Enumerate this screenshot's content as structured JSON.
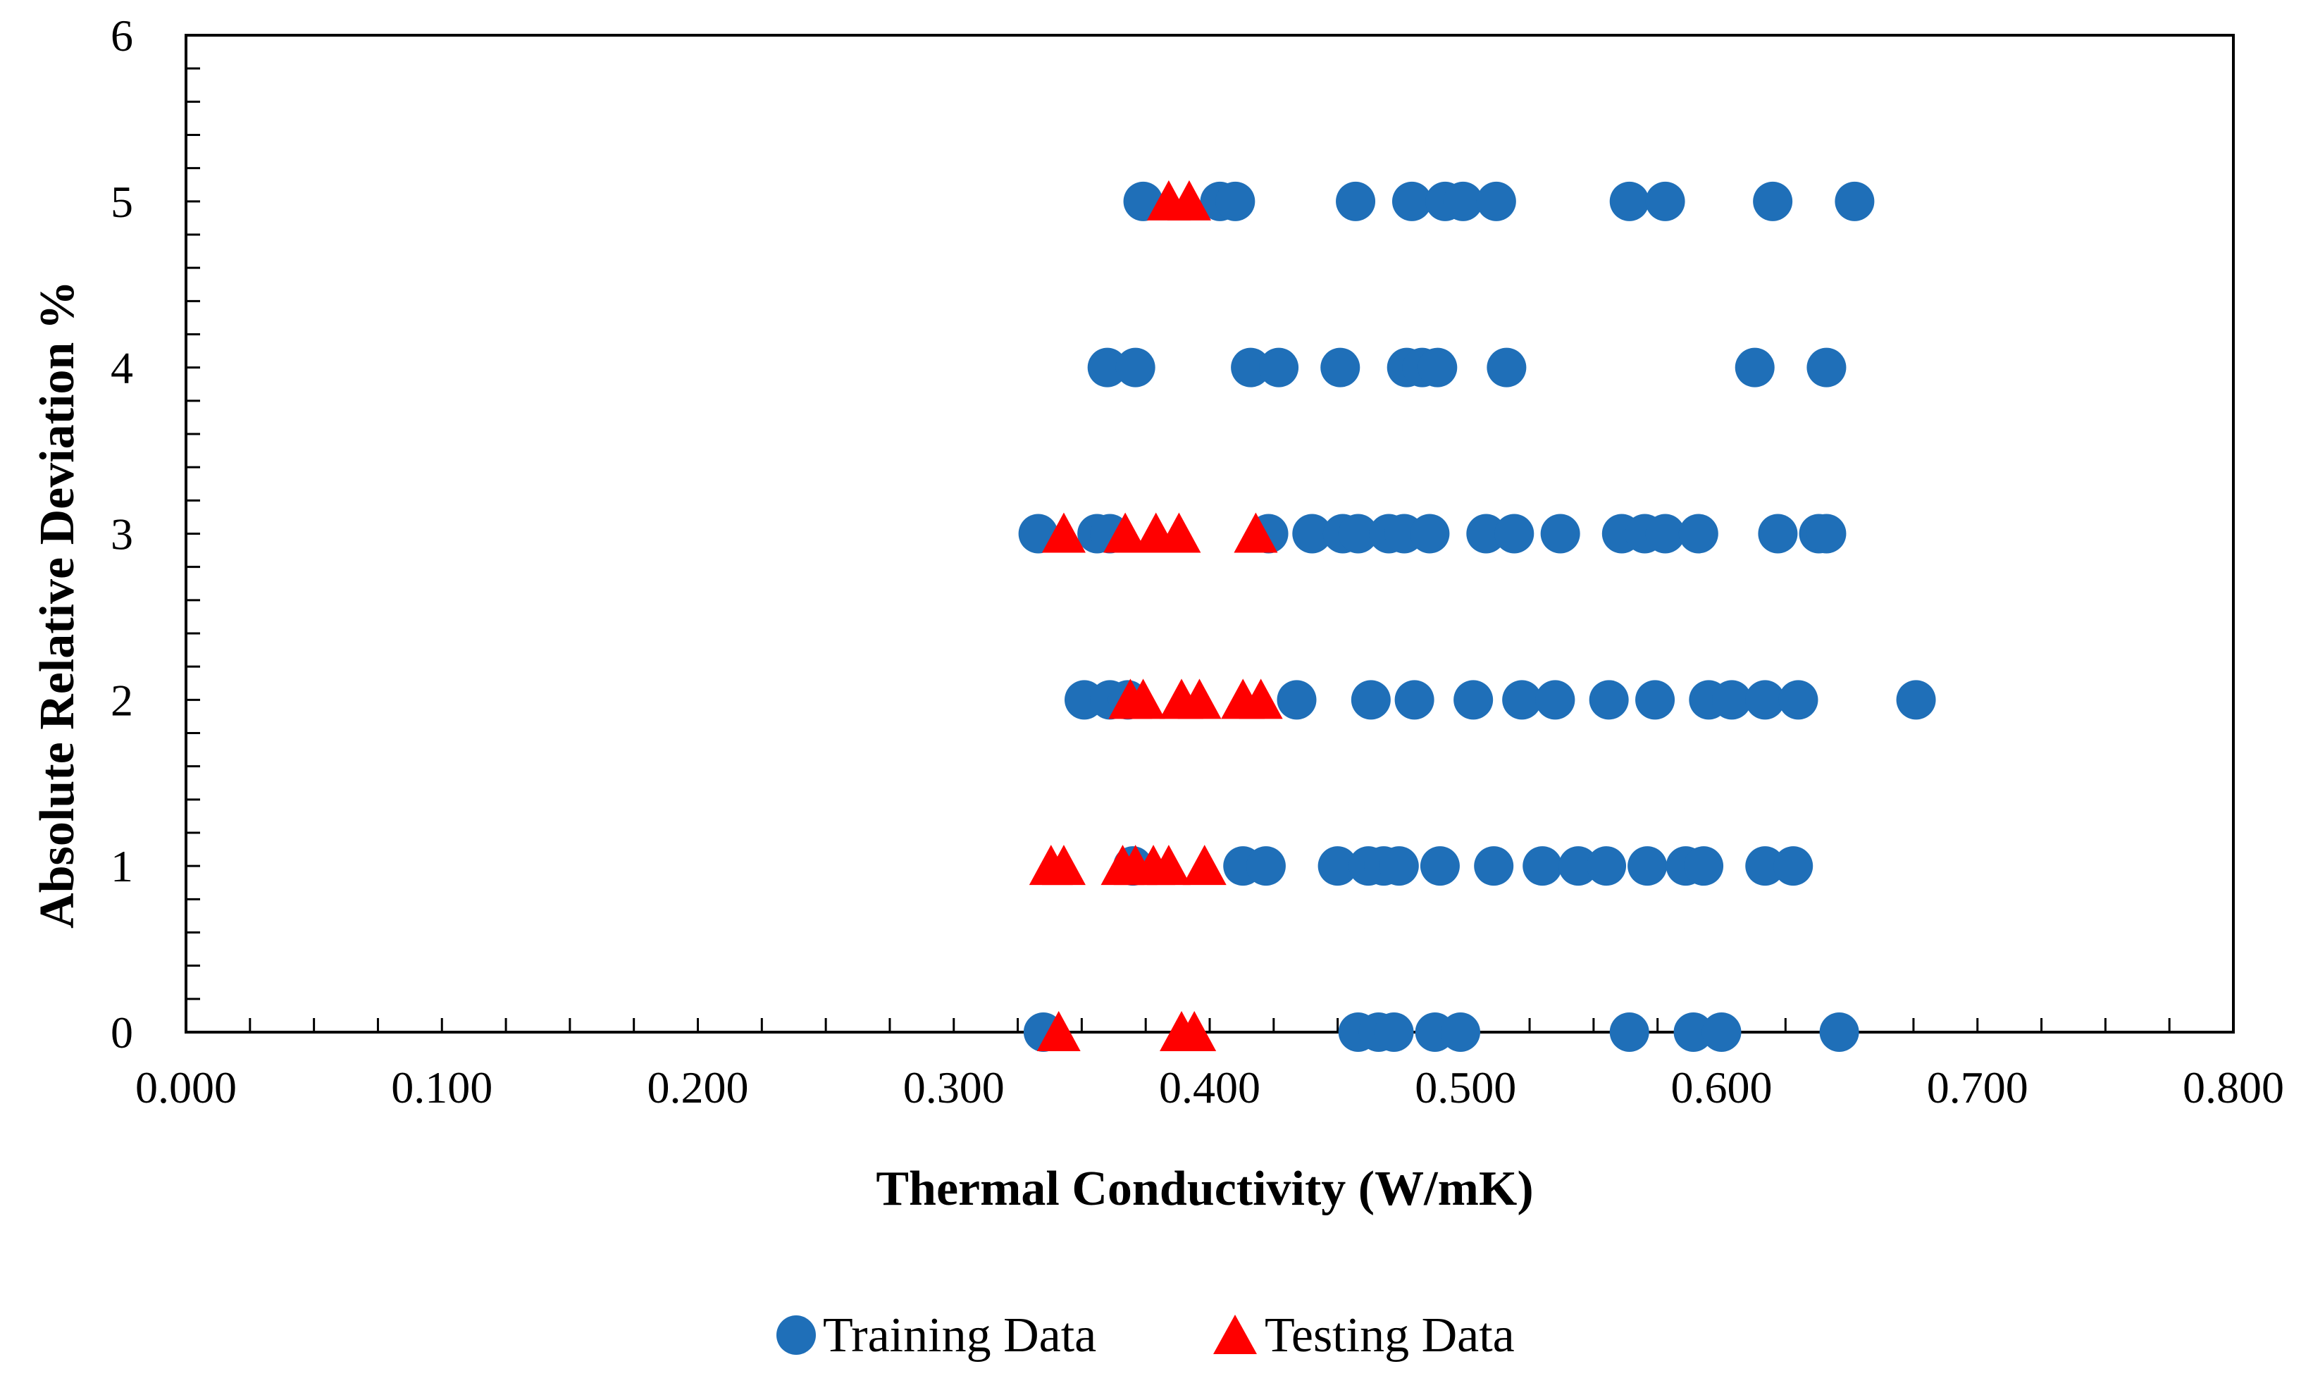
{
  "chart_data": {
    "type": "scatter",
    "title": "",
    "xlabel": "Thermal Conductivity (W/mK)",
    "ylabel": "Absolute Relative Deviation %",
    "xlim": [
      0,
      0.8
    ],
    "ylim": [
      0,
      6
    ],
    "x_tick_labels": [
      "0.000",
      "0.100",
      "0.200",
      "0.300",
      "0.400",
      "0.500",
      "0.600",
      "0.700",
      "0.800"
    ],
    "y_tick_labels": [
      "0",
      "1",
      "2",
      "3",
      "4",
      "5",
      "6"
    ],
    "grid": false,
    "legend_position": "bottom-center",
    "colors": {
      "training": "#1f6fb8",
      "testing": "#ff0000",
      "axis": "#000000"
    },
    "series": [
      {
        "name": "Training Data",
        "marker": "circle",
        "points": [
          {
            "x": 0.335,
            "y": 0
          },
          {
            "x": 0.458,
            "y": 0
          },
          {
            "x": 0.466,
            "y": 0
          },
          {
            "x": 0.472,
            "y": 0
          },
          {
            "x": 0.488,
            "y": 0
          },
          {
            "x": 0.498,
            "y": 0
          },
          {
            "x": 0.564,
            "y": 0
          },
          {
            "x": 0.589,
            "y": 0
          },
          {
            "x": 0.6,
            "y": 0
          },
          {
            "x": 0.646,
            "y": 0
          },
          {
            "x": 0.37,
            "y": 1
          },
          {
            "x": 0.413,
            "y": 1
          },
          {
            "x": 0.422,
            "y": 1
          },
          {
            "x": 0.45,
            "y": 1
          },
          {
            "x": 0.462,
            "y": 1
          },
          {
            "x": 0.468,
            "y": 1
          },
          {
            "x": 0.474,
            "y": 1
          },
          {
            "x": 0.49,
            "y": 1
          },
          {
            "x": 0.511,
            "y": 1
          },
          {
            "x": 0.53,
            "y": 1
          },
          {
            "x": 0.544,
            "y": 1
          },
          {
            "x": 0.555,
            "y": 1
          },
          {
            "x": 0.571,
            "y": 1
          },
          {
            "x": 0.586,
            "y": 1
          },
          {
            "x": 0.593,
            "y": 1
          },
          {
            "x": 0.617,
            "y": 1
          },
          {
            "x": 0.628,
            "y": 1
          },
          {
            "x": 0.351,
            "y": 2
          },
          {
            "x": 0.361,
            "y": 2
          },
          {
            "x": 0.368,
            "y": 2
          },
          {
            "x": 0.434,
            "y": 2
          },
          {
            "x": 0.463,
            "y": 2
          },
          {
            "x": 0.48,
            "y": 2
          },
          {
            "x": 0.503,
            "y": 2
          },
          {
            "x": 0.522,
            "y": 2
          },
          {
            "x": 0.535,
            "y": 2
          },
          {
            "x": 0.556,
            "y": 2
          },
          {
            "x": 0.574,
            "y": 2
          },
          {
            "x": 0.595,
            "y": 2
          },
          {
            "x": 0.604,
            "y": 2
          },
          {
            "x": 0.617,
            "y": 2
          },
          {
            "x": 0.63,
            "y": 2
          },
          {
            "x": 0.676,
            "y": 2
          },
          {
            "x": 0.333,
            "y": 3
          },
          {
            "x": 0.356,
            "y": 3
          },
          {
            "x": 0.361,
            "y": 3
          },
          {
            "x": 0.423,
            "y": 3
          },
          {
            "x": 0.44,
            "y": 3
          },
          {
            "x": 0.452,
            "y": 3
          },
          {
            "x": 0.458,
            "y": 3
          },
          {
            "x": 0.47,
            "y": 3
          },
          {
            "x": 0.476,
            "y": 3
          },
          {
            "x": 0.486,
            "y": 3
          },
          {
            "x": 0.508,
            "y": 3
          },
          {
            "x": 0.519,
            "y": 3
          },
          {
            "x": 0.537,
            "y": 3
          },
          {
            "x": 0.561,
            "y": 3
          },
          {
            "x": 0.57,
            "y": 3
          },
          {
            "x": 0.578,
            "y": 3
          },
          {
            "x": 0.591,
            "y": 3
          },
          {
            "x": 0.622,
            "y": 3
          },
          {
            "x": 0.638,
            "y": 3
          },
          {
            "x": 0.641,
            "y": 3
          },
          {
            "x": 0.36,
            "y": 4
          },
          {
            "x": 0.371,
            "y": 4
          },
          {
            "x": 0.416,
            "y": 4
          },
          {
            "x": 0.427,
            "y": 4
          },
          {
            "x": 0.451,
            "y": 4
          },
          {
            "x": 0.477,
            "y": 4
          },
          {
            "x": 0.483,
            "y": 4
          },
          {
            "x": 0.489,
            "y": 4
          },
          {
            "x": 0.516,
            "y": 4
          },
          {
            "x": 0.613,
            "y": 4
          },
          {
            "x": 0.641,
            "y": 4
          },
          {
            "x": 0.374,
            "y": 5
          },
          {
            "x": 0.404,
            "y": 5
          },
          {
            "x": 0.41,
            "y": 5
          },
          {
            "x": 0.457,
            "y": 5
          },
          {
            "x": 0.479,
            "y": 5
          },
          {
            "x": 0.492,
            "y": 5
          },
          {
            "x": 0.499,
            "y": 5
          },
          {
            "x": 0.512,
            "y": 5
          },
          {
            "x": 0.564,
            "y": 5
          },
          {
            "x": 0.578,
            "y": 5
          },
          {
            "x": 0.62,
            "y": 5
          },
          {
            "x": 0.652,
            "y": 5
          }
        ]
      },
      {
        "name": "Testing Data",
        "marker": "triangle",
        "points": [
          {
            "x": 0.341,
            "y": 0
          },
          {
            "x": 0.389,
            "y": 0
          },
          {
            "x": 0.394,
            "y": 0
          },
          {
            "x": 0.338,
            "y": 1
          },
          {
            "x": 0.343,
            "y": 1
          },
          {
            "x": 0.366,
            "y": 1
          },
          {
            "x": 0.371,
            "y": 1
          },
          {
            "x": 0.378,
            "y": 1
          },
          {
            "x": 0.384,
            "y": 1
          },
          {
            "x": 0.398,
            "y": 1
          },
          {
            "x": 0.369,
            "y": 2
          },
          {
            "x": 0.374,
            "y": 2
          },
          {
            "x": 0.389,
            "y": 2
          },
          {
            "x": 0.396,
            "y": 2
          },
          {
            "x": 0.413,
            "y": 2
          },
          {
            "x": 0.42,
            "y": 2
          },
          {
            "x": 0.343,
            "y": 3
          },
          {
            "x": 0.367,
            "y": 3
          },
          {
            "x": 0.379,
            "y": 3
          },
          {
            "x": 0.388,
            "y": 3
          },
          {
            "x": 0.418,
            "y": 3
          },
          {
            "x": 0.384,
            "y": 5
          },
          {
            "x": 0.392,
            "y": 5
          }
        ]
      }
    ]
  }
}
